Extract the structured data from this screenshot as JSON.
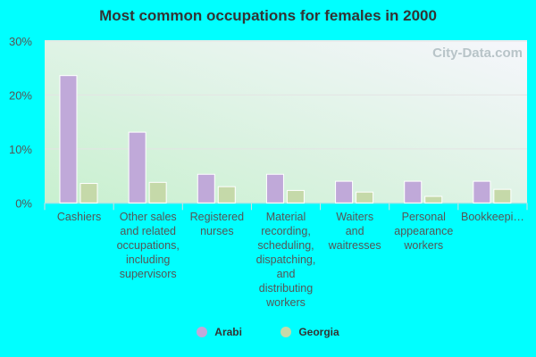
{
  "chart_data": {
    "type": "bar",
    "title": "Most common occupations for females in 2000",
    "categories": [
      [
        "Cashiers"
      ],
      [
        "Other sales",
        "and related",
        "occupations,",
        "including",
        "supervisors"
      ],
      [
        "Registered",
        "nurses"
      ],
      [
        "Material",
        "recording,",
        "scheduling,",
        "dispatching,",
        "and",
        "distributing",
        "workers"
      ],
      [
        "Waiters",
        "and",
        "waitresses"
      ],
      [
        "Personal",
        "appearance",
        "workers"
      ],
      [
        "Bookkeepi…"
      ]
    ],
    "series": [
      {
        "name": "Arabi",
        "color": "#c0a9d9",
        "values": [
          23.6,
          13.1,
          5.3,
          5.3,
          4.0,
          4.0,
          4.0
        ]
      },
      {
        "name": "Georgia",
        "color": "#c5d9a9",
        "values": [
          3.6,
          3.8,
          3.0,
          2.3,
          2.0,
          1.2,
          2.5
        ]
      }
    ],
    "ylim": [
      0,
      30
    ],
    "yticks": [
      "0%",
      "10%",
      "20%",
      "30%"
    ],
    "grid": true,
    "legend": "bottom",
    "watermark": "City-Data.com"
  }
}
